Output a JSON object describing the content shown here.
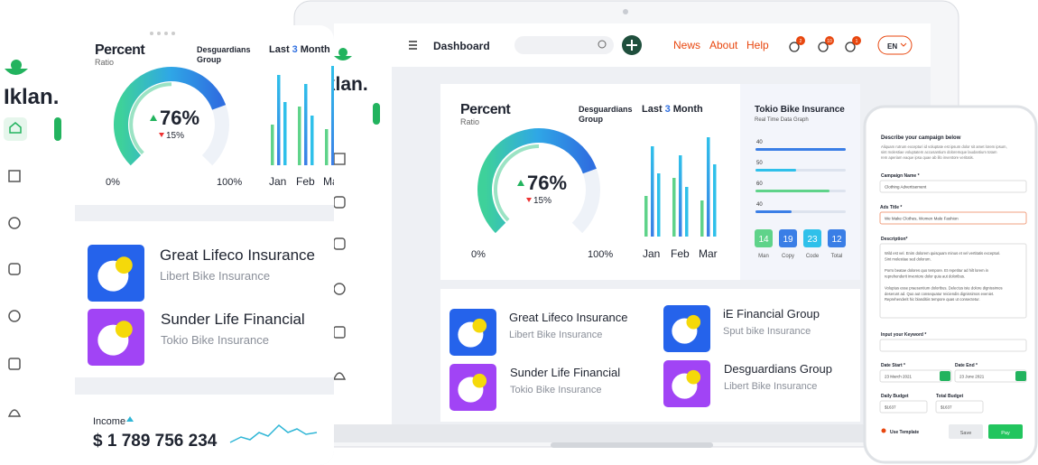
{
  "tablet": {
    "logo": "Iklan.",
    "percent_title": "Percent",
    "percent_sub": "Ratio",
    "group": [
      "Desguardians",
      "Group"
    ],
    "last": [
      "Last",
      "3",
      "Month"
    ],
    "gauge_value": "76%",
    "gauge_change": "15%",
    "min": "0%",
    "max": "100%",
    "months": [
      "Jan",
      "Feb",
      "Mar"
    ],
    "cards": [
      {
        "title": "Great Lifeco Insurance",
        "sub": "Libert Bike Insurance"
      },
      {
        "title": "Sunder Life Financial",
        "sub": "Tokio Bike Insurance"
      }
    ],
    "income_label": "Income",
    "income_value": "$ 1 789 756 234"
  },
  "laptop": {
    "logo": "Iklan.",
    "nav_title": "Dashboard",
    "links": [
      "News",
      "About",
      "Help"
    ],
    "badges": [
      "2",
      "10",
      "1"
    ],
    "language": "EN",
    "percent_title": "Percent",
    "percent_sub": "Ratio",
    "group": [
      "Desguardians",
      "Group"
    ],
    "last": [
      "Last",
      "3",
      "Month"
    ],
    "gauge_value": "76%",
    "gauge_change": "15%",
    "min": "0%",
    "max": "100%",
    "months": [
      "Jan",
      "Feb",
      "Mar"
    ],
    "tokio_title": "Tokio Bike Insurance",
    "tokio_sub": "Real Time Data Graph",
    "tokio_bars": [
      "40",
      "50",
      "60",
      "40"
    ],
    "boxes": [
      {
        "value": "14",
        "label": "Man"
      },
      {
        "value": "19",
        "label": "Copy"
      },
      {
        "value": "23",
        "label": "Code"
      },
      {
        "value": "12",
        "label": "Total"
      }
    ],
    "cards": [
      {
        "title": "Great Lifeco Insurance",
        "sub": "Libert Bike Insurance"
      },
      {
        "title": "iE Financial Group",
        "sub": "Sput bike Insurance"
      },
      {
        "title": "Sunder Life Financial",
        "sub": "Tokio Bike Insurance"
      },
      {
        "title": "Desguardians Group",
        "sub": "Libert Bike Insurance"
      }
    ]
  },
  "phone": {
    "heading": "Describe your campaign below",
    "intro": [
      "Aliquam rutrum excepturi id voluptate est ipsum dolor sit amet lorem ipsum,",
      "sint molestiae voluptatem accusantium doloremque laudantium totam",
      "rem aperiam eaque ipsa quae ab illo inventore veritatis."
    ],
    "campaign_label": "Campaign Name *",
    "campaign_value": "Clothing Advertisement",
    "ads_label": "Ads Title *",
    "ads_value": "We Make Clothes, Women Male Fashion",
    "description_label": "Description*",
    "description": [
      "Wild est vel. Enim dolorem quisquam minus et vel vertitatis excepturi.",
      "Sint molestiae sed dolorum.",
      "",
      "Porro beatae dolores quo tempore. Et repetitur ad hilt lorem in",
      "reprehenderit inventore dolor quia aut doloribus.",
      "",
      "Voluptas esse praesentium doloribus. Delectus iste dolore dignissimos",
      "deserunt ad. Quo aut consequatur reiciendis dignissimos eveniet.",
      "Reprehenderit hic blanditiis tempore quas ut consectetur."
    ],
    "keyword_label": "Input your Keyword *",
    "date_start_label": "Date Start *",
    "date_start": "23 March 2021",
    "date_end_label": "Date End *",
    "date_end": "23 June 2021",
    "daily_label": "Daily Budget",
    "daily_value": "$1637",
    "total_label": "Total Budget",
    "total_value": "$1637",
    "template": "Use Template",
    "save": "Save",
    "pay": "Pay"
  }
}
